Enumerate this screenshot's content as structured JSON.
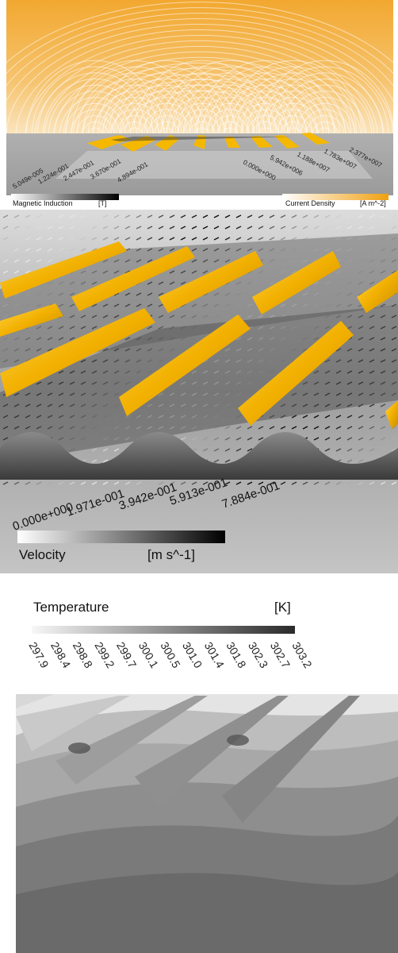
{
  "panel1": {
    "b_title": "Magnetic Induction",
    "b_unit": "[T]",
    "b_ticks": [
      "5.049e-005",
      "1.224e-001",
      "2.447e-001",
      "3.670e-001",
      "4.894e-001"
    ],
    "j_title": "Current Density",
    "j_unit": "[A m^-2]",
    "j_ticks": [
      "0.000e+000",
      "5.942e+006",
      "1.188e+007",
      "1.783e+007",
      "2.377e+007"
    ]
  },
  "panel2": {
    "title": "Velocity",
    "unit": "[m s^-1]",
    "ticks": [
      "0.000e+000",
      "1.971e-001",
      "3.942e-001",
      "5.913e-001",
      "7.884e-001"
    ]
  },
  "panel3": {
    "title": "Temperature",
    "unit": "[K]",
    "ticks": [
      "297.9",
      "298.4",
      "298.8",
      "299.2",
      "299.7",
      "300.1",
      "300.5",
      "301.0",
      "301.4",
      "301.8",
      "302.3",
      "302.7",
      "303.2"
    ]
  },
  "colors": {
    "field_orange": "#f0a010",
    "electrode_gold": "#f5b800",
    "wall_gray": "#9a9a9a",
    "dark_strip": "#3c3c3c"
  }
}
